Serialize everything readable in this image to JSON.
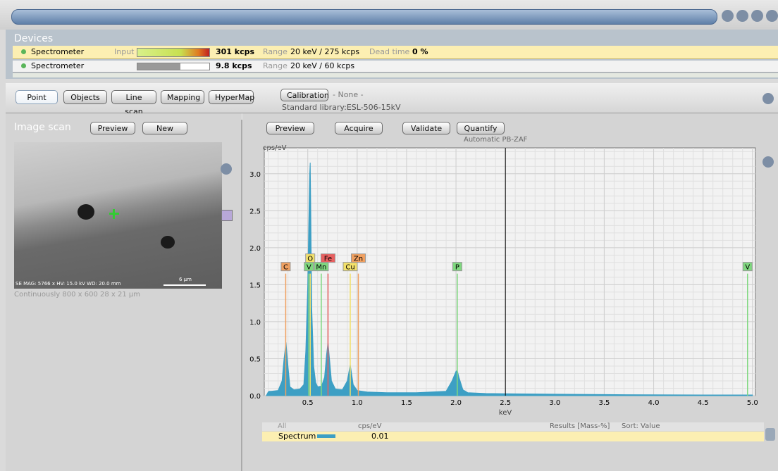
{
  "devices": {
    "title": "Devices",
    "rows": [
      {
        "name": "Spectrometer",
        "input_label": "Input",
        "rate": "301 kcps",
        "range_label": "Range",
        "range": "20 keV / 275 kcps",
        "dead_label": "Dead time",
        "dead": "0 %"
      },
      {
        "name": "Spectrometer",
        "rate": "9.8 kcps",
        "range_label": "Range",
        "range": "20 keV / 60 kcps"
      }
    ]
  },
  "modes": [
    "Point",
    "Objects",
    "Line scan",
    "Mapping",
    "HyperMap"
  ],
  "calibration": {
    "button": "Calibration",
    "value": "- None -",
    "library": "Standard library:ESL-506-15kV"
  },
  "image_scan": {
    "title": "Image scan",
    "buttons": [
      "Preview",
      "New"
    ],
    "overlay": "SE  MAG: 5766 x   HV: 15.0 kV   WD: 20.0 mm",
    "scale": "6 µm",
    "info": "Continuously   800 x 600   28 x 21 µm"
  },
  "spectrum_toolbar": {
    "buttons": [
      "Preview",
      "Acquire",
      "Validate",
      "Quantify"
    ],
    "method": "Automatic PB-ZAF"
  },
  "chart_data": {
    "type": "area",
    "y_label": "cps/eV",
    "x_label": "keV",
    "color": "#3d9fc4",
    "x": [
      0.08,
      0.1,
      0.11,
      0.13,
      0.2,
      0.24,
      0.26,
      0.28,
      0.3,
      0.32,
      0.36,
      0.42,
      0.46,
      0.48,
      0.5,
      0.51,
      0.52,
      0.525,
      0.53,
      0.54,
      0.56,
      0.58,
      0.6,
      0.64,
      0.67,
      0.69,
      0.705,
      0.72,
      0.74,
      0.78,
      0.85,
      0.9,
      0.93,
      0.96,
      1.0,
      1.1,
      1.3,
      1.6,
      1.9,
      1.96,
      2.0,
      2.013,
      2.03,
      2.07,
      2.12,
      2.3,
      2.6,
      3.0,
      3.5,
      4.0,
      4.5,
      5.0
    ],
    "values": [
      0,
      0.05,
      0.06,
      0.06,
      0.07,
      0.2,
      0.5,
      0.72,
      0.4,
      0.12,
      0.08,
      0.09,
      0.15,
      0.6,
      1.5,
      2.3,
      3.0,
      3.15,
      2.6,
      1.2,
      0.4,
      0.18,
      0.12,
      0.13,
      0.25,
      0.55,
      0.72,
      0.5,
      0.2,
      0.09,
      0.08,
      0.2,
      0.42,
      0.15,
      0.07,
      0.05,
      0.04,
      0.04,
      0.06,
      0.2,
      0.33,
      0.34,
      0.25,
      0.08,
      0.04,
      0.03,
      0.025,
      0.02,
      0.015,
      0.012,
      0.01,
      0.01
    ],
    "xlim": [
      0.06,
      5.03
    ],
    "ylim": [
      0,
      3.35
    ],
    "xticks": [
      0.5,
      {
        "value": 1,
        "label": "1.0"
      },
      1.5,
      {
        "value": 2,
        "label": "2.0"
      },
      2.5,
      {
        "value": 3,
        "label": "3.0"
      },
      3.5,
      {
        "value": 4,
        "label": "4.0"
      },
      4.5,
      {
        "value": 5,
        "label": "5.0"
      }
    ],
    "yticks": [
      {
        "value": 0,
        "label": "0.0"
      },
      0.5,
      {
        "value": 1,
        "label": "1.0"
      },
      1.5,
      {
        "value": 2,
        "label": "2.0"
      },
      2.5,
      {
        "value": 3,
        "label": "3.0"
      }
    ],
    "grid": true,
    "cursor_x": 2.5,
    "markers": [
      {
        "label": "C",
        "x": 0.277,
        "value": 1.65,
        "color": "#f0a060"
      },
      {
        "label": "V",
        "x": 0.511,
        "value": 1.65,
        "color": "#7fd87f"
      },
      {
        "label": "O",
        "x": 0.525,
        "value": 1.65,
        "color": "#f2e06a"
      },
      {
        "label": "Mn",
        "x": 0.637,
        "value": 1.65,
        "color": "#7fd87f"
      },
      {
        "label": "Fe",
        "x": 0.705,
        "value": 1.65,
        "color": "#e86060"
      },
      {
        "label": "Cu",
        "x": 0.93,
        "value": 1.65,
        "color": "#f2e06a"
      },
      {
        "label": "Zn",
        "x": 1.012,
        "value": 1.65,
        "color": "#f0a060"
      },
      {
        "label": "P",
        "x": 2.013,
        "value": 1.65,
        "color": "#7fd87f"
      },
      {
        "label": "V",
        "x": 4.95,
        "value": 1.65,
        "color": "#7fd87f"
      }
    ]
  },
  "results": {
    "all": "All",
    "unit": "cps/eV",
    "results": "Results [Mass-%]",
    "sort": "Sort: Value",
    "spectrum": "Spectrum",
    "value": "0.01"
  }
}
